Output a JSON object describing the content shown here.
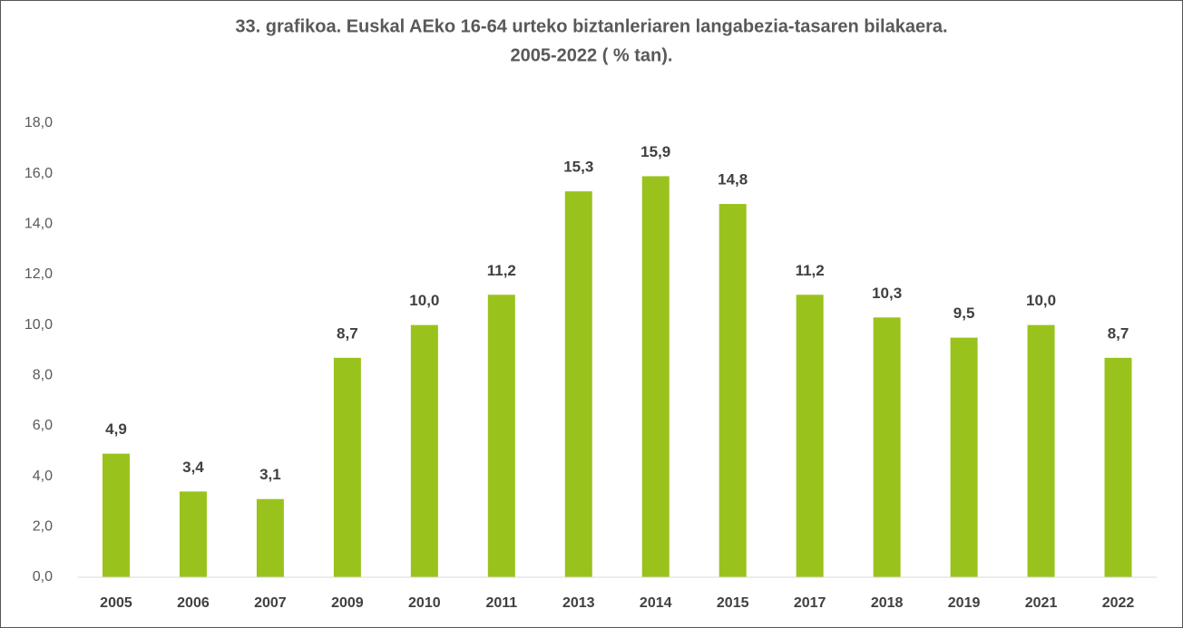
{
  "chart_data": {
    "type": "bar",
    "title": [
      "33. grafikoa. Euskal AEko 16-64 urteko biztanleriaren langabezia-tasaren bilakaera.",
      "2005-2022 ( % tan)."
    ],
    "categories": [
      "2005",
      "2006",
      "2007",
      "2009",
      "2010",
      "2011",
      "2013",
      "2014",
      "2015",
      "2017",
      "2018",
      "2019",
      "2021",
      "2022"
    ],
    "values": [
      4.9,
      3.4,
      3.1,
      8.7,
      10.0,
      11.2,
      15.3,
      15.9,
      14.8,
      11.2,
      10.3,
      9.5,
      10.0,
      8.7
    ],
    "value_labels": [
      "4,9",
      "3,4",
      "3,1",
      "8,7",
      "10,0",
      "11,2",
      "15,3",
      "15,9",
      "14,8",
      "11,2",
      "10,3",
      "9,5",
      "10,0",
      "8,7"
    ],
    "color": "#99c31c",
    "ylim": [
      0,
      18
    ],
    "yticks": [
      {
        "value": 0,
        "label": "0,0"
      },
      {
        "value": 2,
        "label": "2,0"
      },
      {
        "value": 4,
        "label": "4,0"
      },
      {
        "value": 6,
        "label": "6,0"
      },
      {
        "value": 8,
        "label": "8,0"
      },
      {
        "value": 10,
        "label": "10,0"
      },
      {
        "value": 12,
        "label": "12,0"
      },
      {
        "value": 14,
        "label": "14,0"
      },
      {
        "value": 16,
        "label": "16,0"
      },
      {
        "value": 18,
        "label": "18,0"
      }
    ],
    "grid": false
  }
}
